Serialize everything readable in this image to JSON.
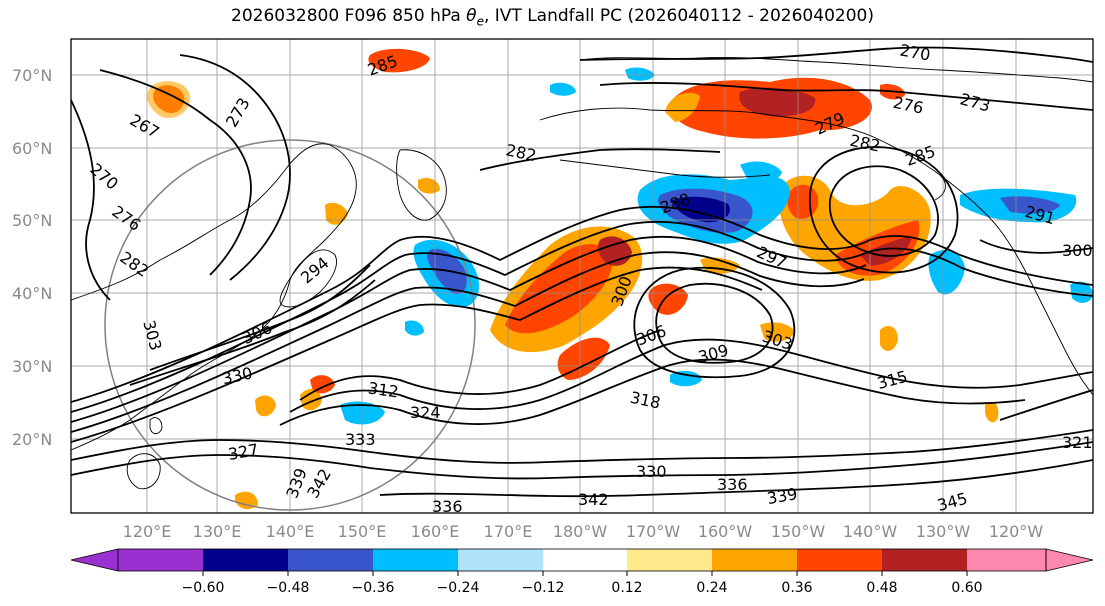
{
  "title": {
    "prefix": "2026032800 F096 850 hPa ",
    "theta_symbol": "θ",
    "theta_sub": "e",
    "suffix": ", IVT Landfall PC (2026040112 - 2026040200)"
  },
  "map": {
    "lat_labels": [
      "70°N",
      "60°N",
      "50°N",
      "40°N",
      "30°N",
      "20°N"
    ],
    "lon_labels": [
      "120°E",
      "130°E",
      "140°E",
      "150°E",
      "160°E",
      "170°E",
      "180°W",
      "170°W",
      "160°W",
      "150°W",
      "140°W",
      "130°W",
      "120°W"
    ],
    "contour_labels": [
      "285",
      "270",
      "276",
      "273",
      "279",
      "282",
      "285",
      "282",
      "267",
      "273",
      "270",
      "276",
      "282",
      "291",
      "300",
      "288",
      "294",
      "297",
      "303",
      "306",
      "309",
      "303",
      "300",
      "306",
      "330",
      "312",
      "324",
      "315",
      "318",
      "327",
      "333",
      "339",
      "342",
      "330",
      "336",
      "339",
      "345",
      "321",
      "336",
      "342"
    ]
  },
  "colorbar": {
    "colors": [
      "#9b30d0",
      "#00008b",
      "#3a56cc",
      "#00bfff",
      "#b0e2fa",
      "#ffffff",
      "#ffe98a",
      "#ffa500",
      "#ff4500",
      "#b22222",
      "#ff88b0"
    ],
    "ticks": [
      "−0.60",
      "−0.48",
      "−0.36",
      "−0.24",
      "−0.12",
      "0.12",
      "0.24",
      "0.36",
      "0.48",
      "0.60"
    ]
  }
}
